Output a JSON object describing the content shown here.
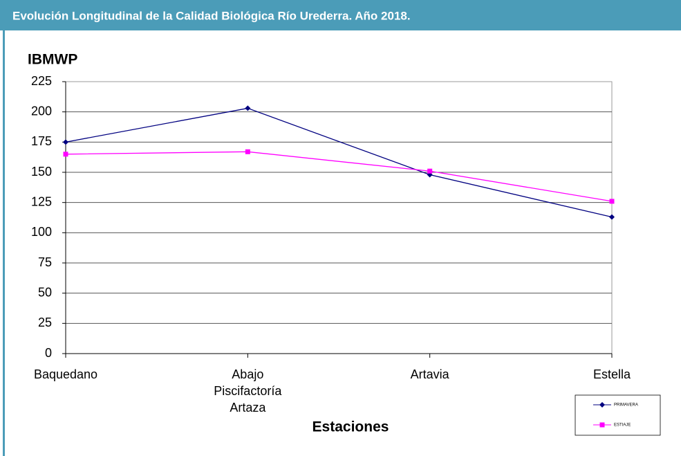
{
  "header": {
    "title": "Evolución Longitudinal de la Calidad Biológica Río Urederra. Año 2018."
  },
  "chart_data": {
    "type": "line",
    "y_label": "IBMWP",
    "x_label": "Estaciones",
    "categories": [
      "Baquedano",
      "Abajo Piscifactoría Artaza",
      "Artavia",
      "Estella"
    ],
    "series": [
      {
        "name": "PRIMAVERA",
        "color": "#000080",
        "marker": "diamond",
        "values": [
          175,
          203,
          148,
          113
        ]
      },
      {
        "name": "ESTIAJE",
        "color": "#ff00ff",
        "marker": "square",
        "values": [
          165,
          167,
          151,
          126
        ]
      }
    ],
    "ylim": [
      0,
      225
    ],
    "yticks": [
      0,
      25,
      50,
      75,
      100,
      125,
      150,
      175,
      200,
      225
    ],
    "grid": true,
    "legend": "lower right"
  }
}
